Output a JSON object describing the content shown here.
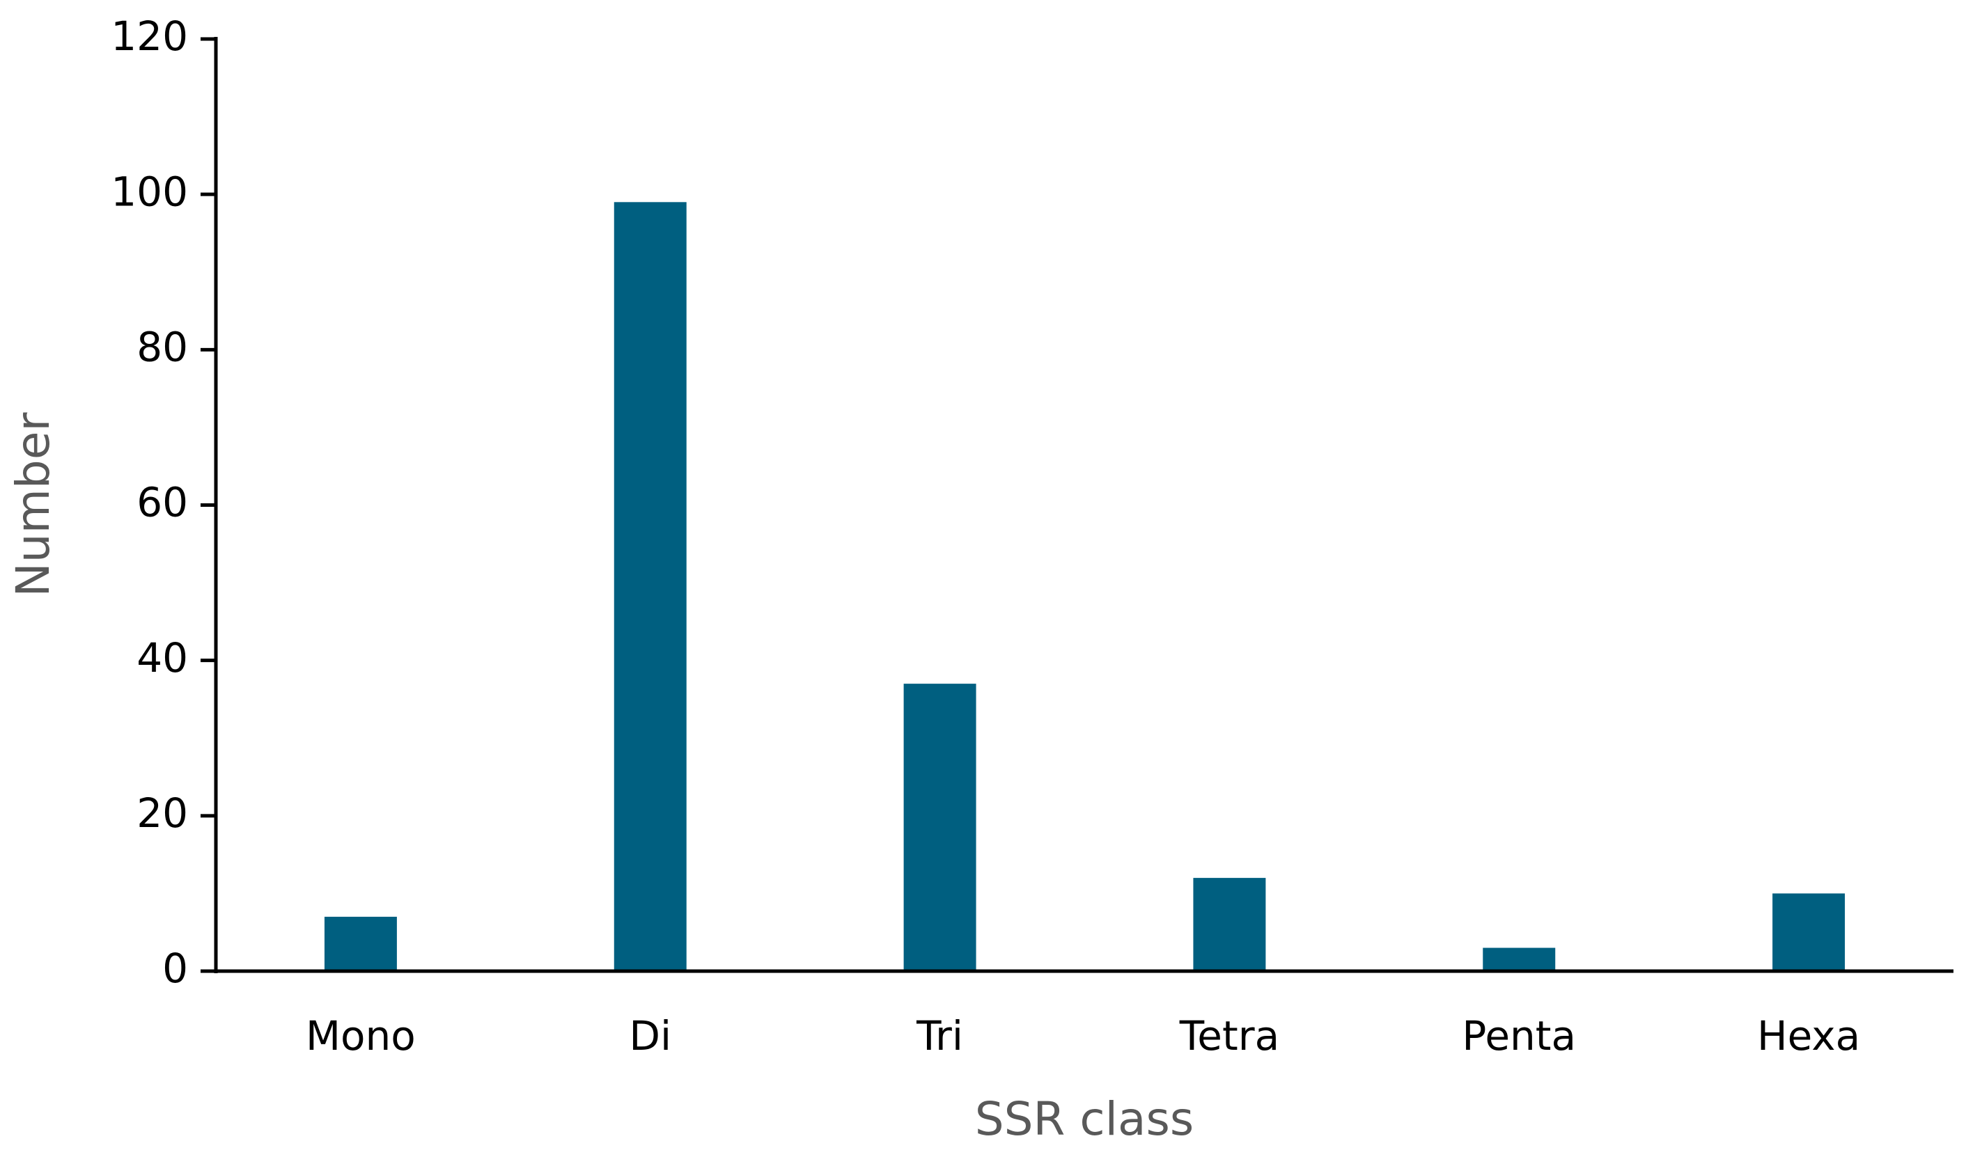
{
  "chart_data": {
    "type": "bar",
    "x_label": "SSR class",
    "y_label": "Number",
    "categories": [
      "Mono",
      "Di",
      "Tri",
      "Tetra",
      "Penta",
      "Hexa"
    ],
    "values": [
      7,
      99,
      37,
      12,
      3,
      10
    ],
    "color": "#005f80",
    "ylim": [
      0,
      120
    ],
    "yticks": [
      0,
      20,
      40,
      60,
      80,
      100,
      120
    ],
    "grid": false
  }
}
